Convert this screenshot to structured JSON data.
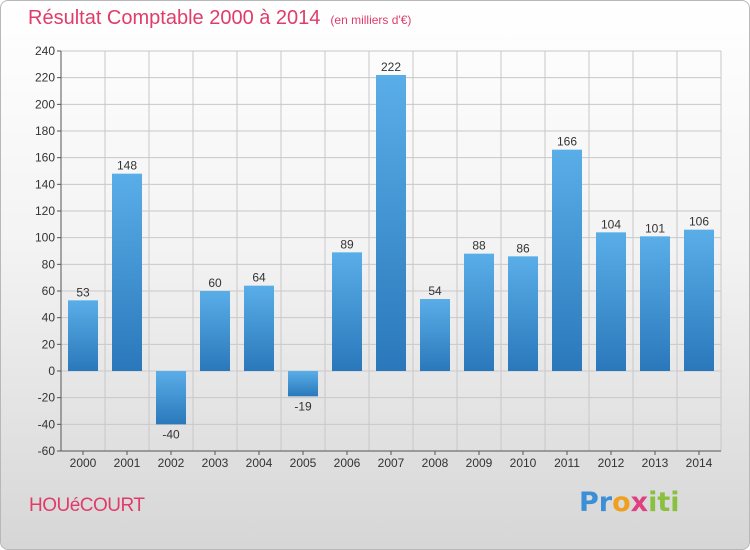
{
  "title": "Résultat Comptable 2000 à 2014",
  "subtitle": "(en milliers d'€)",
  "commune": "HOUéCOURT",
  "logo": {
    "p1": "Pr",
    "p2": "o",
    "p3": "x",
    "p4": "iti"
  },
  "chart_data": {
    "type": "bar",
    "categories": [
      "2000",
      "2001",
      "2002",
      "2003",
      "2004",
      "2005",
      "2006",
      "2007",
      "2008",
      "2009",
      "2010",
      "2011",
      "2012",
      "2013",
      "2014"
    ],
    "values": [
      53,
      148,
      -40,
      60,
      64,
      -19,
      89,
      222,
      54,
      88,
      86,
      166,
      104,
      101,
      106
    ],
    "ylim": [
      -60,
      240
    ],
    "yticks": [
      -60,
      -40,
      -20,
      0,
      20,
      40,
      60,
      80,
      100,
      120,
      140,
      160,
      180,
      200,
      220,
      240
    ],
    "grid": true,
    "colors": {
      "bar_top": "#5aaee8",
      "bar_bottom": "#2a78bb",
      "grid": "#c8c8c8",
      "axis": "#555555"
    }
  }
}
